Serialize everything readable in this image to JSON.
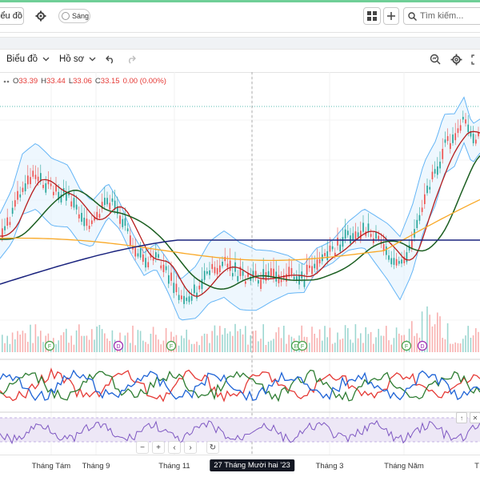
{
  "topbar": {
    "chart_tab_label": "iểu đồ",
    "theme_toggle_label": "Sáng",
    "search_placeholder": "Tìm kiếm..."
  },
  "toolbar": {
    "chart_menu_label": "Biểu đồ",
    "profile_menu_label": "Hồ sơ"
  },
  "legend": {
    "o_label": "O",
    "o_value": "33.39",
    "h_label": "H",
    "h_value": "33.44",
    "l_label": "L",
    "l_value": "33.06",
    "c_label": "C",
    "c_value": "33.15",
    "change": "0.00 (0.00%)"
  },
  "xaxis": {
    "labels": [
      "Tháng Tám",
      "Tháng 9",
      "Tháng 11",
      "27 Tháng Mười hai '23",
      "Tháng 3",
      "Tháng Năm",
      "T"
    ]
  },
  "markers": [
    "F",
    "D",
    "F",
    "E",
    "F",
    "F",
    "D"
  ],
  "colors": {
    "up": "#26a69a",
    "down": "#ef5350",
    "ma_red": "#b71c1c",
    "ma_green": "#1b5e20",
    "ma_yellow": "#f9a825",
    "ma_navy": "#1a237e",
    "bollinger": "#64b5f6",
    "rsi_band": "#ede7f6",
    "rsi_line": "#7e57c2",
    "osc_red": "#e53935",
    "osc_green": "#2e7d32",
    "osc_blue": "#1e63d6"
  },
  "icons": [
    "gear-icon",
    "grid-icon",
    "plus-icon",
    "search-icon",
    "chevron-down-icon",
    "undo-icon",
    "redo-icon",
    "zoom-icon",
    "settings-icon",
    "fullscreen-icon"
  ]
}
